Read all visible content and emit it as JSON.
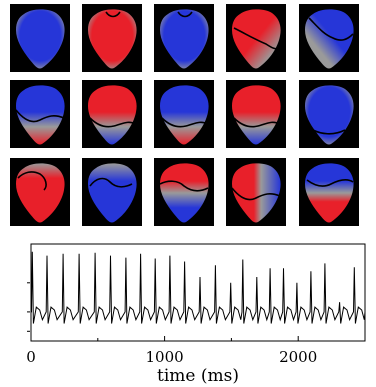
{
  "figure": {
    "rows": 3,
    "columns": 5
  },
  "colors": {
    "positive": "#e8202a",
    "negative": "#2636d8",
    "neutral": "#9a9a9a",
    "panel_background": "#000000",
    "contour": "#000000"
  },
  "panels": [
    {
      "pattern": "blue",
      "contour": "none"
    },
    {
      "pattern": "red",
      "contour": "top-notch"
    },
    {
      "pattern": "blue",
      "contour": "top-notch"
    },
    {
      "pattern": "red-upper-left",
      "contour": "diagonal"
    },
    {
      "pattern": "red-top-right",
      "contour": "diagonal-left"
    },
    {
      "pattern": "blue-top",
      "contour": "wave-middle"
    },
    {
      "pattern": "red-top",
      "contour": "wave-lower"
    },
    {
      "pattern": "blue-top",
      "contour": "wave-lower"
    },
    {
      "pattern": "red-top",
      "contour": "wave-lower"
    },
    {
      "pattern": "blue",
      "contour": "bottom"
    },
    {
      "pattern": "red-bottom",
      "contour": "upper-left"
    },
    {
      "pattern": "blue-bottom",
      "contour": "upper-left-wave"
    },
    {
      "pattern": "red-top-band",
      "contour": "middle"
    },
    {
      "pattern": "red-left-blue-right",
      "contour": "wave-middle"
    },
    {
      "pattern": "red-bottom-blue-top",
      "contour": "wave-upper"
    }
  ],
  "chart_data": {
    "type": "line",
    "xlabel": "time (ms)",
    "xlim": [
      0,
      2500
    ],
    "xticks": [
      0,
      1000,
      2000
    ],
    "ylim": [
      0,
      1
    ],
    "grid": false,
    "beats": [
      {
        "t": 10,
        "a": 0.92
      },
      {
        "t": 120,
        "a": 0.88
      },
      {
        "t": 240,
        "a": 0.9
      },
      {
        "t": 360,
        "a": 0.9
      },
      {
        "t": 480,
        "a": 0.91
      },
      {
        "t": 595,
        "a": 0.88
      },
      {
        "t": 710,
        "a": 0.86
      },
      {
        "t": 820,
        "a": 0.9
      },
      {
        "t": 930,
        "a": 0.85
      },
      {
        "t": 1040,
        "a": 0.88
      },
      {
        "t": 1150,
        "a": 0.82
      },
      {
        "t": 1265,
        "a": 0.66
      },
      {
        "t": 1380,
        "a": 0.78
      },
      {
        "t": 1495,
        "a": 0.6
      },
      {
        "t": 1585,
        "a": 0.84
      },
      {
        "t": 1690,
        "a": 0.66
      },
      {
        "t": 1790,
        "a": 0.75
      },
      {
        "t": 1890,
        "a": 0.75
      },
      {
        "t": 1990,
        "a": 0.6
      },
      {
        "t": 2095,
        "a": 0.72
      },
      {
        "t": 2200,
        "a": 0.8
      },
      {
        "t": 2310,
        "a": 0.4
      },
      {
        "t": 2420,
        "a": 0.76
      }
    ],
    "baseline": 0.3
  }
}
